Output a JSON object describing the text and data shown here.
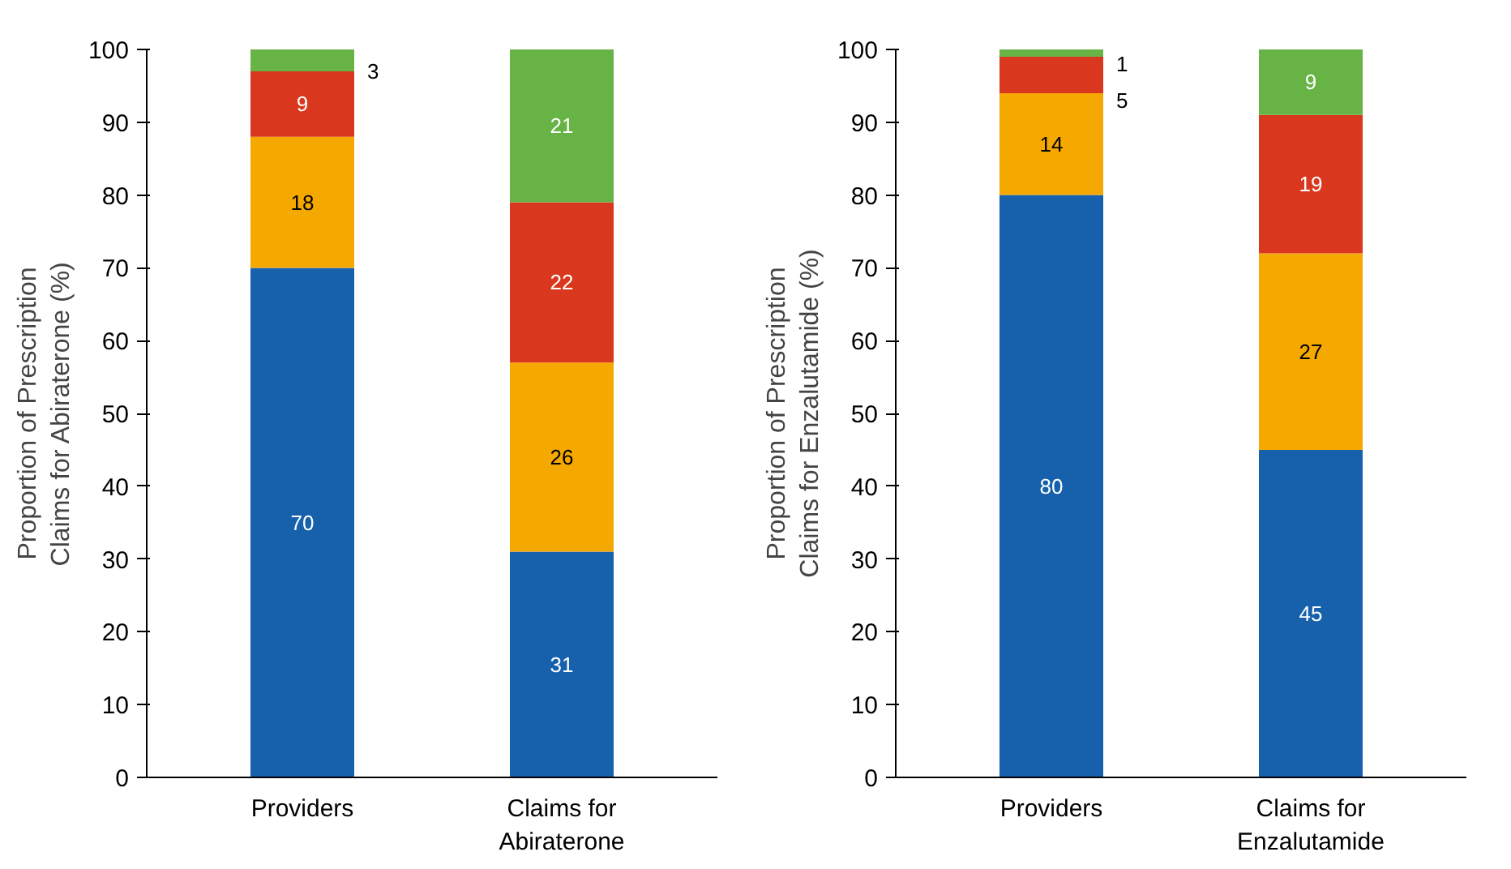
{
  "chart_data": [
    {
      "type": "bar",
      "stacked": true,
      "ylabel": "Proportion of Prescription\nClaims for Abiraterone (%)",
      "categories": [
        "Providers",
        "Claims for\nAbiraterone"
      ],
      "ylim": [
        0,
        100
      ],
      "yticks": [
        0,
        10,
        20,
        30,
        40,
        50,
        60,
        70,
        80,
        90,
        100
      ],
      "grid": false,
      "data_labels": true,
      "series": [
        {
          "color": "#1660ac",
          "values": [
            70,
            31
          ]
        },
        {
          "color": "#f5a800",
          "values": [
            18,
            26
          ]
        },
        {
          "color": "#d9381e",
          "values": [
            9,
            22
          ]
        },
        {
          "color": "#67b346",
          "values": [
            3,
            21
          ]
        }
      ]
    },
    {
      "type": "bar",
      "stacked": true,
      "ylabel": "Proportion of Prescription\nClaims for Enzalutamide (%)",
      "categories": [
        "Providers",
        "Claims for\nEnzalutamide"
      ],
      "ylim": [
        0,
        100
      ],
      "yticks": [
        0,
        10,
        20,
        30,
        40,
        50,
        60,
        70,
        80,
        90,
        100
      ],
      "grid": false,
      "data_labels": true,
      "series": [
        {
          "color": "#1660ac",
          "values": [
            80,
            45
          ]
        },
        {
          "color": "#f5a800",
          "values": [
            14,
            27
          ]
        },
        {
          "color": "#d9381e",
          "values": [
            5,
            19
          ]
        },
        {
          "color": "#67b346",
          "values": [
            1,
            9
          ]
        }
      ]
    }
  ]
}
